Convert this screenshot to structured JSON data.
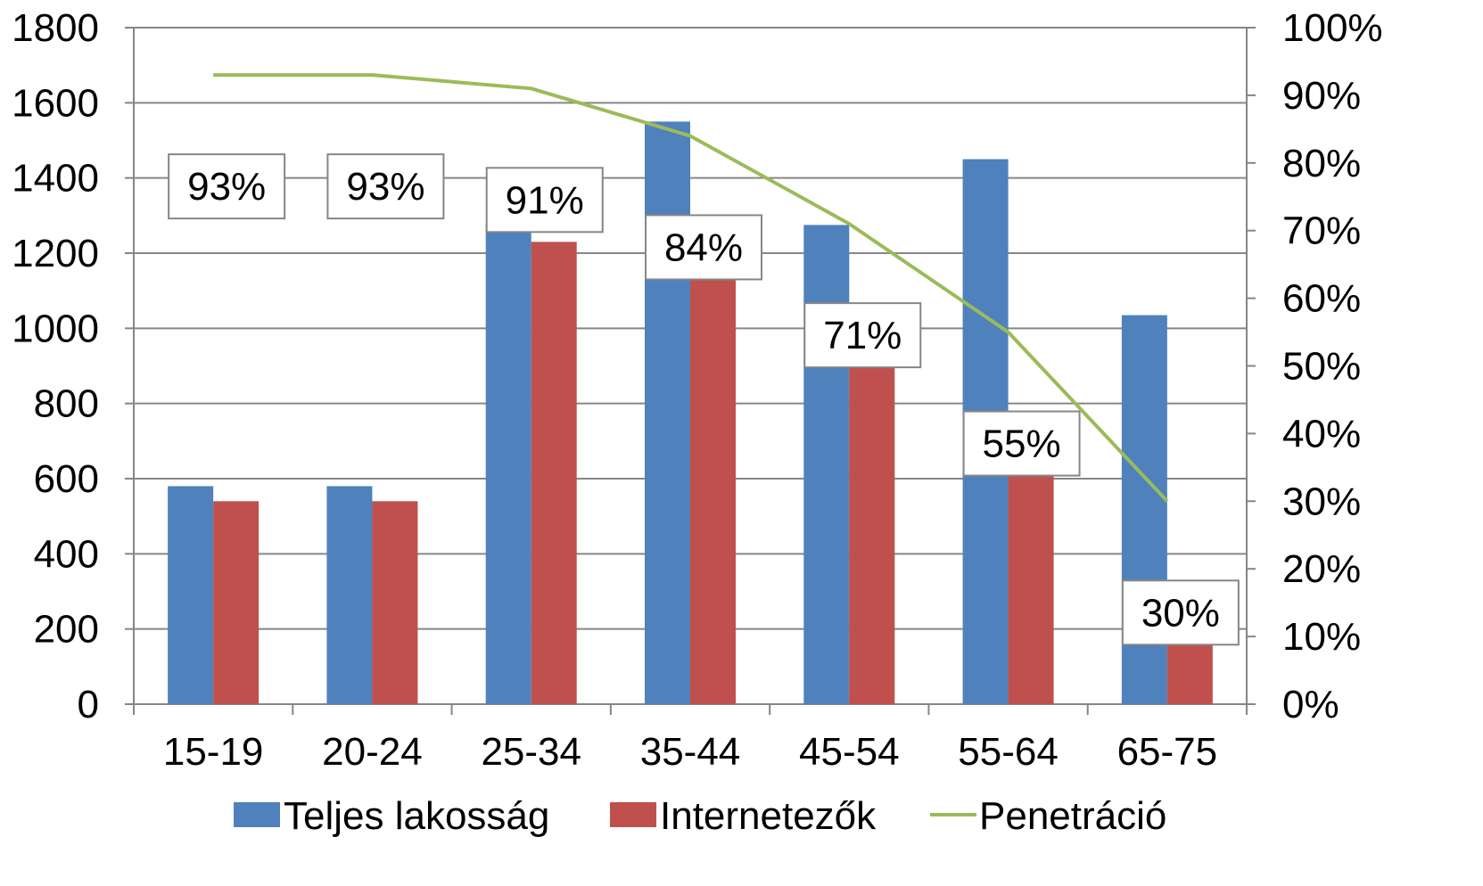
{
  "chart_data": {
    "type": "bar",
    "categories": [
      "15-19",
      "20-24",
      "25-34",
      "35-44",
      "45-54",
      "55-64",
      "65-75"
    ],
    "series": [
      {
        "name": "Teljes lakosság",
        "kind": "bar",
        "axis": "left",
        "color": "#4F81BD",
        "values": [
          580,
          580,
          1280,
          1550,
          1275,
          1450,
          1035
        ]
      },
      {
        "name": "Internetezők",
        "kind": "bar",
        "axis": "left",
        "color": "#C0504D",
        "values": [
          540,
          540,
          1230,
          1160,
          905,
          660,
          300
        ]
      },
      {
        "name": "Penetráció",
        "kind": "line",
        "axis": "right",
        "color": "#9BBB59",
        "values": [
          93,
          93,
          91,
          84,
          71,
          55,
          30
        ]
      }
    ],
    "data_labels": [
      "93%",
      "93%",
      "91%",
      "84%",
      "71%",
      "55%",
      "30%"
    ],
    "y_left": {
      "ticks": [
        "0",
        "200",
        "400",
        "600",
        "800",
        "1000",
        "1200",
        "1400",
        "1600",
        "1800"
      ],
      "lim": [
        0,
        1800
      ]
    },
    "y_right": {
      "ticks": [
        "0%",
        "10%",
        "20%",
        "30%",
        "40%",
        "50%",
        "60%",
        "70%",
        "80%",
        "90%",
        "100%"
      ],
      "lim": [
        0,
        100
      ]
    },
    "grid": true,
    "legend": "bottom",
    "gridline_color": "#868686",
    "axis_color": "#868686"
  }
}
